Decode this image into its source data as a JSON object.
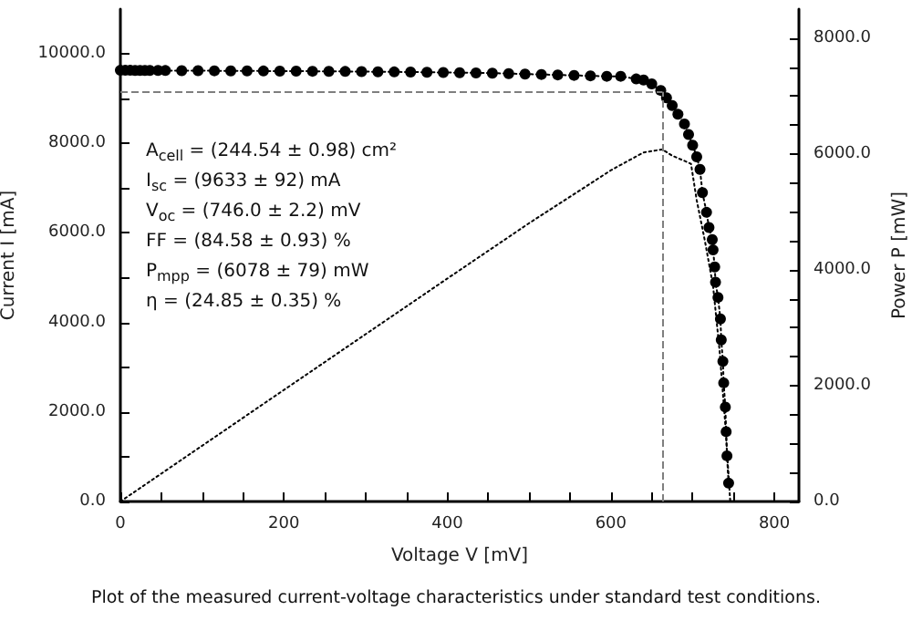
{
  "chart_data": {
    "type": "line",
    "xlabel": "Voltage V [mV]",
    "ylabel": "Current I [mA]",
    "y2label": "Power P [mW]",
    "xlim": [
      0,
      830
    ],
    "ylim": [
      0,
      11000
    ],
    "y2lim": [
      0,
      8500
    ],
    "xticks": [
      0,
      {
        "value": 50,
        "label": null
      },
      {
        "value": 100,
        "label": null
      },
      {
        "value": 150,
        "label": null
      },
      200,
      {
        "value": 250,
        "label": null
      },
      {
        "value": 300,
        "label": null
      },
      {
        "value": 350,
        "label": null
      },
      400,
      {
        "value": 450,
        "label": null
      },
      {
        "value": 500,
        "label": null
      },
      {
        "value": 550,
        "label": null
      },
      600,
      {
        "value": 650,
        "label": null
      },
      {
        "value": 700,
        "label": null
      },
      {
        "value": 750,
        "label": null
      },
      800
    ],
    "yticks": [
      {
        "value": 0,
        "label": "0.0"
      },
      {
        "value": 1000,
        "label": null
      },
      {
        "value": 2000,
        "label": "2000.0"
      },
      {
        "value": 3000,
        "label": null
      },
      {
        "value": 4000,
        "label": "4000.0"
      },
      {
        "value": 5000,
        "label": null
      },
      {
        "value": 6000,
        "label": "6000.0"
      },
      {
        "value": 7000,
        "label": null
      },
      {
        "value": 8000,
        "label": "8000.0"
      },
      {
        "value": 9000,
        "label": null
      },
      {
        "value": 10000,
        "label": "10000.0"
      }
    ],
    "y2ticks": [
      {
        "value": 0,
        "label": "0.0"
      },
      {
        "value": 500,
        "label": null
      },
      {
        "value": 1000,
        "label": null
      },
      {
        "value": 1500,
        "label": null
      },
      {
        "value": 2000,
        "label": "2000.0"
      },
      {
        "value": 2500,
        "label": null
      },
      {
        "value": 3000,
        "label": null
      },
      {
        "value": 3500,
        "label": null
      },
      {
        "value": 4000,
        "label": "4000.0"
      },
      {
        "value": 4500,
        "label": null
      },
      {
        "value": 5000,
        "label": null
      },
      {
        "value": 5500,
        "label": null
      },
      {
        "value": 6000,
        "label": "6000.0"
      },
      {
        "value": 6500,
        "label": null
      },
      {
        "value": 7000,
        "label": null
      },
      {
        "value": 7500,
        "label": null
      },
      {
        "value": 8000,
        "label": "8000.0"
      }
    ],
    "line_style": "dotted",
    "series": [
      {
        "color": "#000000",
        "marker": "circle",
        "x": [
          0,
          6,
          12,
          18,
          24,
          30,
          36,
          46,
          55,
          75,
          95,
          115,
          135,
          155,
          175,
          195,
          215,
          235,
          255,
          275,
          295,
          315,
          335,
          355,
          375,
          395,
          415,
          435,
          455,
          475,
          495,
          515,
          535,
          555,
          575,
          595,
          612,
          631,
          640,
          650,
          661,
          668,
          675,
          682,
          690,
          695,
          700,
          705,
          709,
          712,
          717,
          720,
          724,
          725,
          727,
          728,
          731,
          734,
          735,
          737,
          738,
          740,
          741,
          742,
          744
        ],
        "values": [
          9633,
          9633,
          9633,
          9630,
          9630,
          9630,
          9630,
          9630,
          9628,
          9625,
          9625,
          9622,
          9620,
          9620,
          9618,
          9615,
          9615,
          9612,
          9610,
          9608,
          9605,
          9600,
          9598,
          9595,
          9590,
          9585,
          9580,
          9575,
          9570,
          9560,
          9550,
          9540,
          9530,
          9520,
          9510,
          9500,
          9500,
          9440,
          9416,
          9330,
          9184,
          9020,
          8845,
          8650,
          8435,
          8200,
          7960,
          7700,
          7420,
          6900,
          6460,
          6120,
          5850,
          5620,
          5240,
          4900,
          4560,
          4080,
          3610,
          3130,
          2650,
          2110,
          1560,
          1020,
          410
        ]
      },
      {
        "color": "#000000",
        "marker": "none",
        "axis": "y2",
        "x": [
          0,
          100,
          200,
          300,
          400,
          500,
          600,
          640,
          663,
          675,
          690,
          698,
          705,
          715,
          725,
          733,
          740,
          746
        ],
        "values": [
          0,
          963,
          1926,
          2888,
          3850,
          4805,
          5718,
          6026,
          6078,
          5970,
          5880,
          5830,
          5200,
          4500,
          3720,
          2600,
          1320,
          0
        ]
      }
    ],
    "ref_lines": [
      {
        "axis": "y",
        "value": 9150,
        "color": "#7f7f7f",
        "line_style": "dashed"
      },
      {
        "axis": "x",
        "value": 663,
        "color": "#7f7f7f",
        "line_style": "dashed"
      }
    ],
    "annotations": [
      "A$_{cell}$ = (244.54 ± 0.98) cm²",
      "I$_{sc}$ = (9633 ± 92) mA",
      "V$_{oc}$ = (746.0 ± 2.2) mV",
      "FF = (84.58 ± 0.93) %",
      "P$_{mpp}$ = (6078 ± 79) mW",
      "η = (24.85 ± 0.35) %",
      "Plot of the measured current-voltage characteristics under standard test conditions."
    ]
  }
}
